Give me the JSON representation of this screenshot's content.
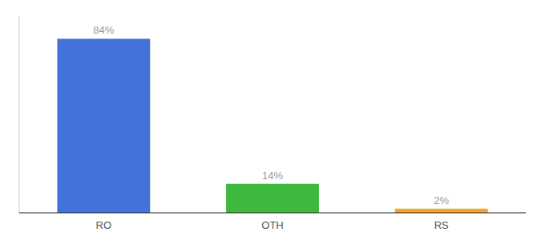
{
  "chart_data": {
    "type": "bar",
    "categories": [
      "RO",
      "OTH",
      "RS"
    ],
    "values": [
      84,
      14,
      2
    ],
    "value_labels": [
      "84%",
      "14%",
      "2%"
    ],
    "colors": [
      "#4472db",
      "#3dba3d",
      "#f5a623"
    ],
    "ylim": [
      0,
      95
    ],
    "data_labels": true,
    "tick_labels": "x",
    "grid": false
  }
}
